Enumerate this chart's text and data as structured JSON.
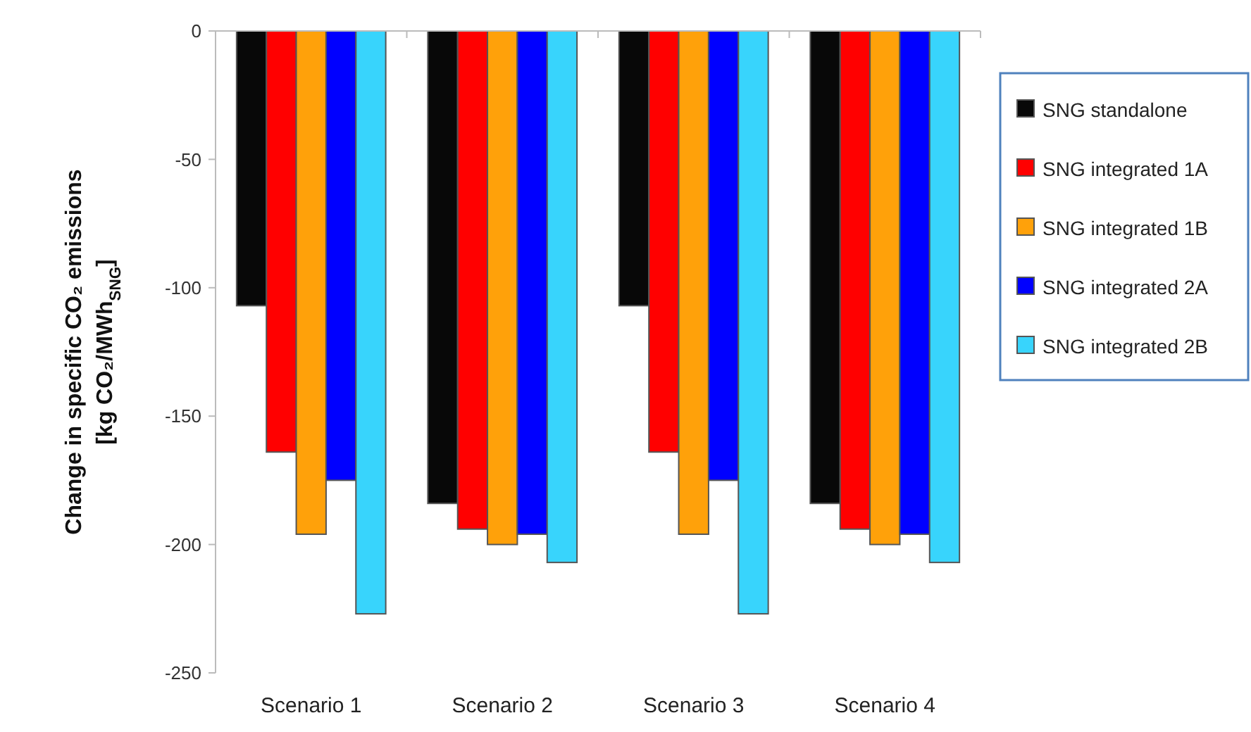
{
  "chart_data": {
    "type": "bar",
    "ylabel": "Change in specific CO₂ emissions\n[kg CO₂/MWh$_{SNG}$]",
    "categories": [
      "Scenario 1",
      "Scenario 2",
      "Scenario 3",
      "Scenario 4"
    ],
    "series": [
      {
        "name": "SNG standalone",
        "color": "#080808",
        "values": [
          -107,
          -184,
          -107,
          -184
        ]
      },
      {
        "name": "SNG integrated 1A",
        "color": "#ff0000",
        "values": [
          -164,
          -194,
          -164,
          -194
        ]
      },
      {
        "name": "SNG integrated 1B",
        "color": "#ffa10a",
        "values": [
          -196,
          -200,
          -196,
          -200
        ]
      },
      {
        "name": "SNG integrated 2A",
        "color": "#0000ff",
        "values": [
          -175,
          -196,
          -175,
          -196
        ]
      },
      {
        "name": "SNG integrated 2B",
        "color": "#38d4fc",
        "values": [
          -227,
          -207,
          -227,
          -207
        ]
      }
    ],
    "ylim": [
      -250,
      0
    ],
    "yticks": [
      -250,
      -200,
      -150,
      -100,
      -50,
      0
    ],
    "grid": false,
    "legend": "right"
  }
}
